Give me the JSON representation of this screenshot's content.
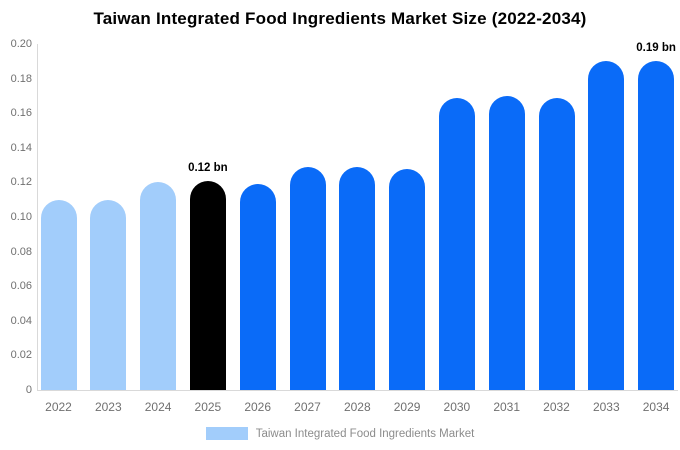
{
  "chart_data": {
    "type": "bar",
    "title": "Taiwan Integrated Food Ingredients Market Size (2022-2034)",
    "xlabel": "",
    "ylabel": "",
    "unit": "bn",
    "categories": [
      "2022",
      "2023",
      "2024",
      "2025",
      "2026",
      "2027",
      "2028",
      "2029",
      "2030",
      "2031",
      "2032",
      "2033",
      "2034"
    ],
    "values": [
      0.11,
      0.11,
      0.12,
      0.121,
      0.119,
      0.129,
      0.129,
      0.128,
      0.169,
      0.17,
      0.169,
      0.19,
      0.19
    ],
    "bar_periods": [
      "past",
      "past",
      "past",
      "current",
      "forecast",
      "forecast",
      "forecast",
      "forecast",
      "forecast",
      "forecast",
      "forecast",
      "forecast",
      "forecast"
    ],
    "annotations": [
      {
        "category": "2025",
        "text": "0.12 bn"
      },
      {
        "category": "2034",
        "text": "0.19 bn"
      }
    ],
    "ylim": [
      0,
      0.2
    ],
    "yticks": [
      "0",
      "0.02",
      "0.04",
      "0.06",
      "0.08",
      "0.10",
      "0.12",
      "0.14",
      "0.16",
      "0.18",
      "0.20"
    ],
    "grid": false,
    "legend_position": "bottom"
  },
  "colors": {
    "past": "#a2cdfb",
    "current": "#000000",
    "forecast": "#0a6bf8",
    "axis_line": "#d9d9d9",
    "axis_label": "#707070",
    "legend_text": "#8c8c8c",
    "title_text": "#000000"
  },
  "legend": {
    "label": "Taiwan Integrated Food Ingredients Market",
    "swatch_color": "#a2cdfb"
  }
}
